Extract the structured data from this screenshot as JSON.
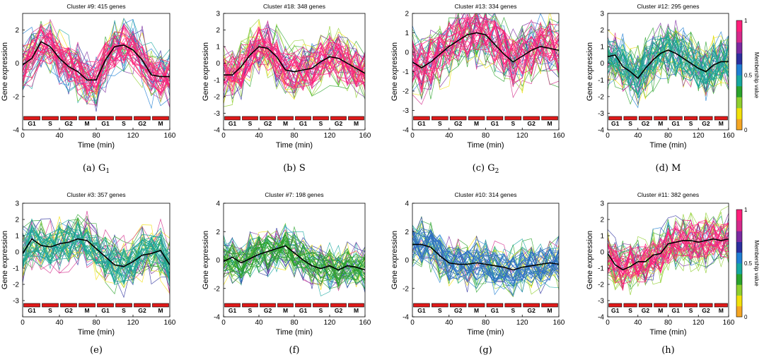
{
  "figure": {
    "axis_x_label": "Time (min)",
    "axis_y_label": "Gene expression",
    "phase_labels": [
      "G1",
      "S",
      "G2",
      "M",
      "G1",
      "S",
      "G2",
      "M"
    ],
    "colorbar_label": "Membership value",
    "colorbar_ticks": [
      "0",
      "0.5",
      "1"
    ],
    "colorbar_colors": [
      "#f5a623",
      "#f2e10a",
      "#8fcf2e",
      "#2aa32c",
      "#16a7a0",
      "#1f7fd4",
      "#2c2f9e",
      "#7a2aa0",
      "#d42a8b",
      "#ff1f7a"
    ]
  },
  "chart_data": [
    {
      "type": "line",
      "caption": "(a) G",
      "caption_sub": "1",
      "title": "Cluster #9: 415 genes",
      "xlabel": "Time (min)",
      "ylabel": "Gene expression",
      "xlim": [
        0,
        160
      ],
      "ylim": [
        -4,
        3
      ],
      "xticks": [
        0,
        40,
        80,
        120,
        160
      ],
      "yticks": [
        -4,
        -2,
        0,
        2
      ],
      "dominant_color": "#ff1f7a",
      "x": [
        0,
        10,
        20,
        30,
        40,
        50,
        60,
        70,
        80,
        90,
        100,
        110,
        120,
        130,
        140,
        150,
        160
      ],
      "series": [
        {
          "name": "centroid",
          "values": [
            -0.1,
            0.3,
            1.3,
            1.0,
            0.3,
            -0.2,
            -0.5,
            -1.0,
            -1.0,
            0.2,
            1.0,
            1.1,
            0.8,
            0.2,
            -0.7,
            -0.8,
            -0.8
          ]
        }
      ]
    },
    {
      "type": "line",
      "caption": "(b) S",
      "caption_sub": "",
      "title": "Cluster #18: 348 genes",
      "xlabel": "Time (min)",
      "ylabel": "Gene expression",
      "xlim": [
        0,
        160
      ],
      "ylim": [
        -4,
        3
      ],
      "xticks": [
        0,
        40,
        80,
        120,
        160
      ],
      "yticks": [
        -4,
        -3,
        -2,
        -1,
        0,
        1,
        2,
        3
      ],
      "dominant_color": "#ff1f7a",
      "x": [
        0,
        10,
        20,
        30,
        40,
        50,
        60,
        70,
        80,
        90,
        100,
        110,
        120,
        130,
        140,
        150,
        160
      ],
      "series": [
        {
          "name": "centroid",
          "values": [
            -0.7,
            -0.7,
            -0.2,
            0.5,
            1.0,
            0.9,
            0.4,
            -0.4,
            -0.5,
            -0.4,
            -0.3,
            0.1,
            0.4,
            0.3,
            0.0,
            -0.3,
            -0.6
          ]
        }
      ]
    },
    {
      "type": "line",
      "caption": "(c) G",
      "caption_sub": "2",
      "title": "Cluster #13: 334 genes",
      "xlabel": "Time (min)",
      "ylabel": "Gene expression",
      "xlim": [
        0,
        160
      ],
      "ylim": [
        -4,
        2
      ],
      "xticks": [
        0,
        40,
        80,
        120,
        160
      ],
      "yticks": [
        -4,
        -3,
        -2,
        -1,
        0,
        1,
        2
      ],
      "dominant_color": "#ff1f7a",
      "x": [
        0,
        10,
        20,
        30,
        40,
        50,
        60,
        70,
        80,
        90,
        100,
        110,
        120,
        130,
        140,
        150,
        160
      ],
      "series": [
        {
          "name": "centroid",
          "values": [
            -0.5,
            -0.8,
            -0.5,
            -0.1,
            0.3,
            0.6,
            0.9,
            1.0,
            0.9,
            0.4,
            -0.1,
            -0.5,
            -0.2,
            0.1,
            0.3,
            0.2,
            0.1
          ]
        }
      ]
    },
    {
      "type": "line",
      "caption": "(d) M",
      "caption_sub": "",
      "title": "Cluster #12: 295 genes",
      "xlabel": "Time (min)",
      "ylabel": "Gene expression",
      "xlim": [
        0,
        160
      ],
      "ylim": [
        -4,
        3
      ],
      "xticks": [
        0,
        40,
        80,
        120,
        160
      ],
      "yticks": [
        -4,
        -3,
        -2,
        -1,
        0,
        1,
        2,
        3
      ],
      "dominant_color": "#1aa596",
      "x": [
        0,
        10,
        20,
        30,
        40,
        50,
        60,
        70,
        80,
        90,
        100,
        110,
        120,
        130,
        140,
        150,
        160
      ],
      "series": [
        {
          "name": "centroid",
          "values": [
            0.4,
            0.5,
            -0.2,
            -0.5,
            -0.9,
            -0.3,
            0.2,
            0.6,
            0.8,
            0.6,
            0.3,
            0.0,
            -0.3,
            -0.5,
            -0.1,
            0.1,
            0.1
          ]
        }
      ]
    },
    {
      "type": "line",
      "caption": "(e)",
      "caption_sub": "",
      "title": "Cluster #3: 357 genes",
      "xlabel": "Time (min)",
      "ylabel": "Gene expression",
      "xlim": [
        0,
        160
      ],
      "ylim": [
        -4,
        3
      ],
      "xticks": [
        0,
        40,
        80,
        120,
        160
      ],
      "yticks": [
        -3,
        -2,
        -1,
        0,
        1,
        2,
        3
      ],
      "dominant_color": "#1aa596",
      "x": [
        0,
        10,
        20,
        30,
        40,
        50,
        60,
        70,
        80,
        90,
        100,
        110,
        120,
        130,
        140,
        150,
        160
      ],
      "series": [
        {
          "name": "centroid",
          "values": [
            -0.1,
            0.8,
            0.4,
            0.3,
            0.5,
            0.6,
            0.8,
            0.7,
            0.2,
            -0.3,
            -0.8,
            -0.9,
            -0.6,
            -0.2,
            -0.1,
            0.1,
            -0.8
          ]
        }
      ]
    },
    {
      "type": "line",
      "caption": "(f)",
      "caption_sub": "",
      "title": "Cluster #7: 198 genes",
      "xlabel": "Time (min)",
      "ylabel": "Gene expression",
      "xlim": [
        0,
        160
      ],
      "ylim": [
        -4,
        4
      ],
      "xticks": [
        0,
        40,
        80,
        120,
        160
      ],
      "yticks": [
        -4,
        -2,
        0,
        2,
        4
      ],
      "dominant_color": "#2aa32c",
      "x": [
        0,
        10,
        20,
        30,
        40,
        50,
        60,
        70,
        80,
        90,
        100,
        110,
        120,
        130,
        140,
        150,
        160
      ],
      "series": [
        {
          "name": "centroid",
          "values": [
            -0.1,
            0.2,
            -0.2,
            0.1,
            0.4,
            0.6,
            0.8,
            1.0,
            0.5,
            0.0,
            -0.4,
            -0.6,
            -0.4,
            -0.7,
            -0.4,
            -0.5,
            -0.7
          ]
        }
      ]
    },
    {
      "type": "line",
      "caption": "(g)",
      "caption_sub": "",
      "title": "Cluster #10: 314 genes",
      "xlabel": "Time (min)",
      "ylabel": "Gene expression",
      "xlim": [
        0,
        160
      ],
      "ylim": [
        -4,
        4
      ],
      "xticks": [
        0,
        40,
        80,
        120,
        160
      ],
      "yticks": [
        -4,
        -2,
        0,
        2,
        4
      ],
      "dominant_color": "#2c6fc4",
      "x": [
        0,
        10,
        20,
        30,
        40,
        50,
        60,
        70,
        80,
        90,
        100,
        110,
        120,
        130,
        140,
        150,
        160
      ],
      "series": [
        {
          "name": "centroid",
          "values": [
            1.1,
            1.1,
            0.9,
            0.3,
            -0.2,
            -0.3,
            -0.3,
            -0.2,
            -0.3,
            -0.4,
            -0.5,
            -0.7,
            -0.5,
            -0.4,
            -0.3,
            -0.2,
            -0.3
          ]
        }
      ]
    },
    {
      "type": "line",
      "caption": "(h)",
      "caption_sub": "",
      "title": "Cluster #11: 382 genes",
      "xlabel": "Time (min)",
      "ylabel": "Gene expression",
      "xlim": [
        0,
        160
      ],
      "ylim": [
        -4,
        3
      ],
      "xticks": [
        0,
        40,
        80,
        120,
        160
      ],
      "yticks": [
        -4,
        -3,
        -2,
        -1,
        0,
        1,
        2,
        3
      ],
      "dominant_color": "#ff1f7a",
      "x": [
        0,
        10,
        20,
        30,
        40,
        50,
        60,
        70,
        80,
        90,
        100,
        110,
        120,
        130,
        140,
        150,
        160
      ],
      "series": [
        {
          "name": "centroid",
          "values": [
            -0.1,
            -0.8,
            -1.1,
            -0.9,
            -0.6,
            -0.6,
            -0.2,
            -0.1,
            0.5,
            0.6,
            0.7,
            0.7,
            0.6,
            0.7,
            0.8,
            0.7,
            0.8
          ]
        }
      ]
    }
  ]
}
